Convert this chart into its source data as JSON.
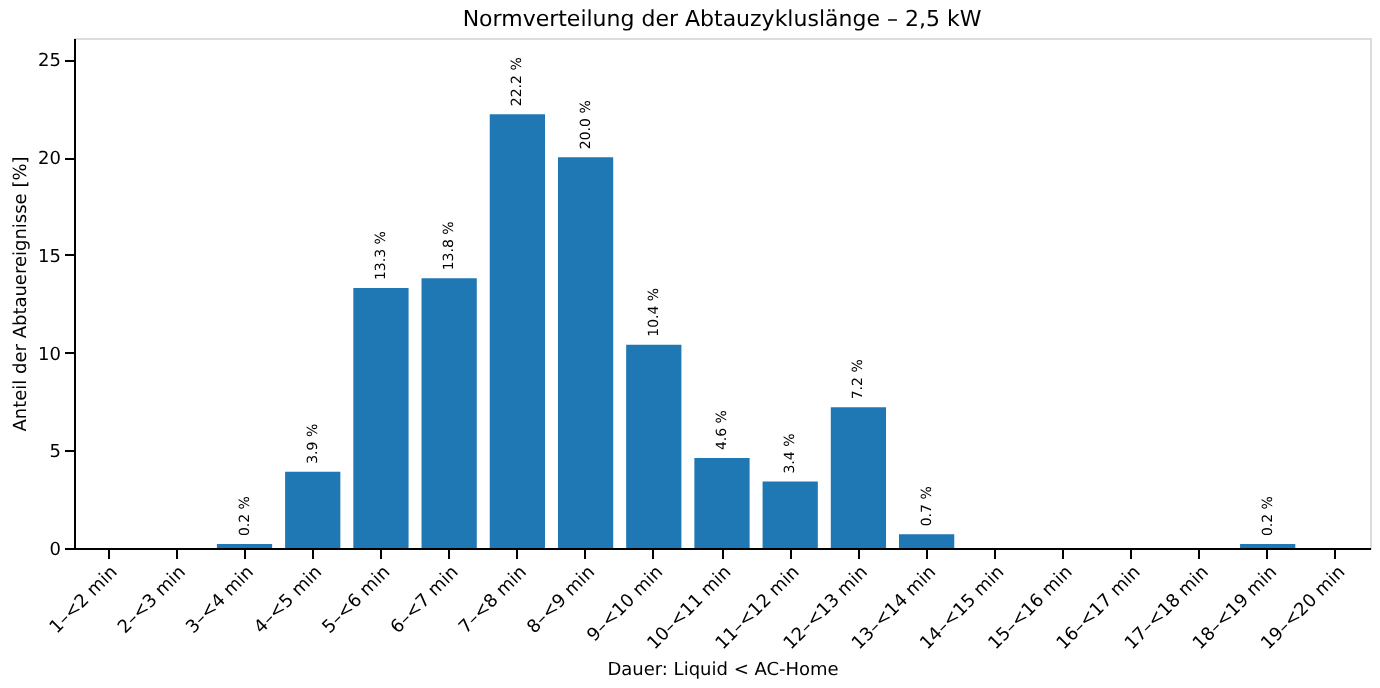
{
  "chart_data": {
    "type": "bar",
    "title": "Normverteilung der Abtauzykluslänge – 2,5 kW",
    "xlabel": "Dauer: Liquid < AC-Home",
    "ylabel": "Anteil der Abtauereignisse [%]",
    "categories": [
      "1–<2 min",
      "2–<3 min",
      "3–<4 min",
      "4–<5 min",
      "5–<6 min",
      "6–<7 min",
      "7–<8 min",
      "8–<9 min",
      "9–<10 min",
      "10–<11 min",
      "11–<12 min",
      "12–<13 min",
      "13–<14 min",
      "14–<15 min",
      "15–<16 min",
      "16–<17 min",
      "17–<18 min",
      "18–<19 min",
      "19–<20 min"
    ],
    "values": [
      0,
      0,
      0.2,
      3.9,
      13.3,
      13.8,
      22.2,
      20.0,
      10.4,
      4.6,
      3.4,
      7.2,
      0.7,
      0,
      0,
      0,
      0,
      0.2,
      0
    ],
    "value_labels": [
      null,
      null,
      "0.2 %",
      "3.9 %",
      "13.3 %",
      "13.8 %",
      "22.2 %",
      "20.0 %",
      "10.4 %",
      "4.6 %",
      "3.4 %",
      "7.2 %",
      "0.7 %",
      null,
      null,
      null,
      null,
      "0.2 %",
      null
    ],
    "color": "#1f77b4",
    "ylim": [
      0,
      26.1
    ],
    "yticks": [
      0,
      5,
      10,
      15,
      20,
      25
    ],
    "grid": false
  }
}
